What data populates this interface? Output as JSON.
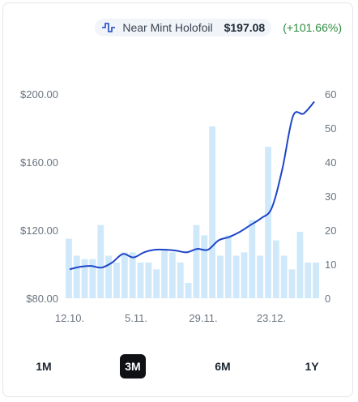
{
  "legend": {
    "icon": "price-line-icon",
    "name": "Near Mint Holofoil",
    "price": "$197.08",
    "change": "(+101.66%)",
    "change_color": "#2e8b3e"
  },
  "chart_data": {
    "type": "bar+line",
    "x_tick_labels": [
      "12.10.",
      "5.11.",
      "29.11.",
      "23.12."
    ],
    "y_left": {
      "ticks": [
        "$200.00",
        "$160.00",
        "$120.00",
        "$80.00"
      ],
      "values": [
        200,
        160,
        120,
        80
      ],
      "range": [
        80,
        200
      ]
    },
    "y_right": {
      "ticks": [
        "60",
        "50",
        "40",
        "30",
        "20",
        "10",
        "0"
      ],
      "values": [
        60,
        50,
        40,
        30,
        20,
        10,
        0
      ],
      "range": [
        0,
        60
      ]
    },
    "bar_series": {
      "axis": "right",
      "color": "#cfe9fb",
      "values": [
        17.5,
        12.5,
        11.5,
        11.5,
        21.5,
        12.5,
        10.5,
        13.5,
        13.5,
        10.5,
        10.5,
        8.5,
        14.5,
        13.5,
        10.5,
        4.5,
        21.5,
        18.5,
        50.5,
        12.5,
        18.5,
        12.5,
        13.5,
        23,
        12.5,
        44.5,
        17,
        12.5,
        8.5,
        19.5,
        10.5,
        10.5
      ]
    },
    "line_series": {
      "axis": "left",
      "color": "#1e45c8",
      "values": [
        97,
        98.5,
        99,
        98,
        101,
        106,
        104,
        107,
        108.5,
        108.5,
        108,
        107,
        109,
        108.5,
        114,
        116,
        119,
        123,
        127,
        133,
        156,
        187,
        188.5,
        195.5
      ]
    },
    "grid": false
  },
  "tabs": [
    {
      "label": "1M",
      "active": false
    },
    {
      "label": "3M",
      "active": true
    },
    {
      "label": "6M",
      "active": false
    },
    {
      "label": "1Y",
      "active": false
    }
  ]
}
